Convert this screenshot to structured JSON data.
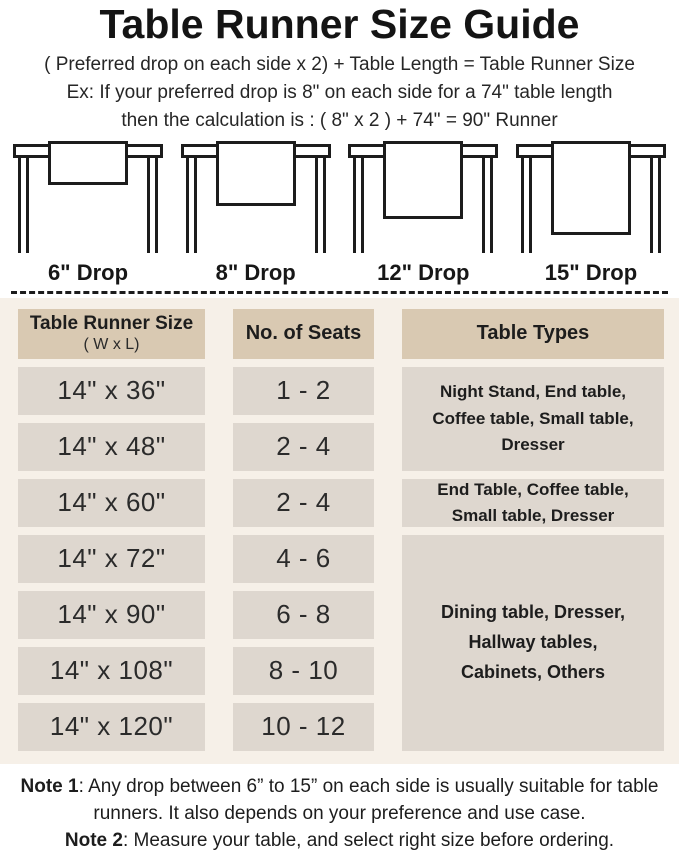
{
  "page": {
    "title": "Table Runner Size Guide",
    "formula": "( Preferred drop on each side x 2) + Table Length = Table Runner Size",
    "example_line1": "Ex: If your preferred drop is 8\" on each side for a 74\" table length",
    "example_line2": "then the calculation is : ( 8\" x 2 ) + 74\" = 90\" Runner"
  },
  "illustrations": [
    {
      "label": "6\" Drop",
      "drop_inches": 6
    },
    {
      "label": "8\" Drop",
      "drop_inches": 8
    },
    {
      "label": "12\" Drop",
      "drop_inches": 12
    },
    {
      "label": "15\" Drop",
      "drop_inches": 15
    }
  ],
  "size_table": {
    "headers": {
      "runner_size_title": "Table Runner Size",
      "runner_size_sub": "( W x L)",
      "seats": "No. of Seats",
      "types": "Table Types"
    },
    "rows": [
      {
        "size": "14\" x 36\"",
        "seats": "1 - 2"
      },
      {
        "size": "14\" x 48\"",
        "seats": "2 - 4"
      },
      {
        "size": "14\" x 60\"",
        "seats": "2 - 4"
      },
      {
        "size": "14\" x 72\"",
        "seats": "4 - 6"
      },
      {
        "size": "14\" x 90\"",
        "seats": "6 - 8"
      },
      {
        "size": "14\" x 108\"",
        "seats": "8 - 10"
      },
      {
        "size": "14\" x 120\"",
        "seats": "10 - 12"
      }
    ],
    "type_groups": [
      {
        "rows_covered": "14\" x 36\" and 14\" x 48\"",
        "text": "Night Stand, End table, Coffee table, Small table, Dresser"
      },
      {
        "rows_covered": "14\" x 60\"",
        "text": "End Table, Coffee table, Small table, Dresser"
      },
      {
        "rows_covered": "14\" x 72\" to 14\" x 120\"",
        "text": "Dining table, Dresser, Hallway tables, Cabinets, Others"
      }
    ]
  },
  "notes": [
    {
      "label": "Note 1",
      "text": ": Any drop between 6” to 15” on each side is usually suitable for table runners. It also depends on your preference and use case."
    },
    {
      "label": "Note 2",
      "text": ": Measure your table, and select right size before ordering."
    }
  ],
  "colors": {
    "header_cell_bg": "#d9c9b2",
    "body_cell_bg": "#ded7cf",
    "section_bg": "#f6f0e8",
    "line_color": "#1c1c1c",
    "text_color": "#1d1d1d"
  }
}
